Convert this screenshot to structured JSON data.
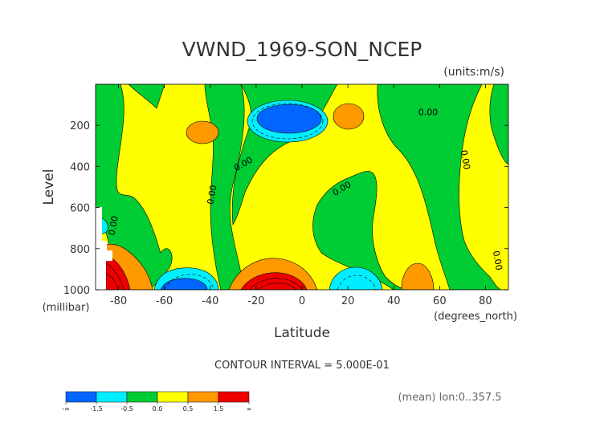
{
  "chart_data": {
    "type": "heatmap",
    "title": "VWND_1969-SON_NCEP",
    "units": "(units:m/s)",
    "xlabel": "Latitude",
    "x_units": "(degrees_north)",
    "ylabel": "Level",
    "y_units": "(millibar)",
    "xlim": [
      -90,
      90
    ],
    "ylim": [
      1000,
      0
    ],
    "x_ticks": [
      "-80",
      "-60",
      "-40",
      "-20",
      "0",
      "20",
      "40",
      "60",
      "80"
    ],
    "x_tick_values": [
      -80,
      -60,
      -40,
      -20,
      0,
      20,
      40,
      60,
      80
    ],
    "y_ticks": [
      "200",
      "400",
      "600",
      "800",
      "1000"
    ],
    "y_tick_values": [
      200,
      400,
      600,
      800,
      1000
    ],
    "contour_interval_text": "CONTOUR INTERVAL = 5.000E-01",
    "contour_labels": [
      {
        "text": "0.00",
        "lat": 55,
        "lev": 150
      },
      {
        "text": "0.00",
        "lat": 70,
        "lev": 370
      },
      {
        "text": "0.00",
        "lat": -25,
        "lev": 400
      },
      {
        "text": "0.00",
        "lat": -38,
        "lev": 540
      },
      {
        "text": "0.00",
        "lat": 18,
        "lev": 520
      },
      {
        "text": "0.00",
        "lat": -81,
        "lev": 690
      },
      {
        "text": "0.00",
        "lat": 84,
        "lev": 860
      }
    ],
    "regions": [
      {
        "level": "0.5 to 1.5",
        "color": "#ff9900",
        "lat": -40,
        "lev": 190
      },
      {
        "level": "0.5 to 1.5",
        "color": "#ff9900",
        "lat": 22,
        "lev": 150
      },
      {
        "level": "0.5 to 1.5",
        "color": "#ff9900",
        "lat": 52,
        "lev": 970
      },
      {
        "level": "> 1.5",
        "color": "#ee0000",
        "lat": -85,
        "lev": 950
      },
      {
        "level": "> 1.5",
        "color": "#ee0000",
        "lat": -10,
        "lev": 960
      },
      {
        "level": "< -1.5",
        "color": "#0066ff",
        "lat": -3,
        "lev": 160
      },
      {
        "level": "-1.5 to -0.5",
        "color": "#00eeff",
        "lat": -3,
        "lev": 170
      },
      {
        "level": "-1.5 to -0.5",
        "color": "#00eeff",
        "lat": -50,
        "lev": 960
      },
      {
        "level": "-1.5 to -0.5",
        "color": "#00eeff",
        "lat": 22,
        "lev": 960
      },
      {
        "level": "-1.5 to -0.5",
        "color": "#00eeff",
        "lat": -85,
        "lev": 690
      }
    ],
    "legend": {
      "bins": [
        {
          "color": "#0066ff",
          "label": "-1.5"
        },
        {
          "color": "#00eeff",
          "label": "-0.5"
        },
        {
          "color": "#00cc33",
          "label": "0.0"
        },
        {
          "color": "#ffff00",
          "label": "0.5"
        },
        {
          "color": "#ff9900",
          "label": "1.5"
        },
        {
          "color": "#ee0000",
          "label": "∞"
        }
      ],
      "start_label": "-∞"
    },
    "footer": "(mean) lon:0..357.5"
  },
  "colors": {
    "yellow": "#ffff00",
    "green": "#00cc33",
    "orange": "#ff9900",
    "red": "#ee0000",
    "cyan": "#00eeff",
    "blue": "#0066ff"
  }
}
